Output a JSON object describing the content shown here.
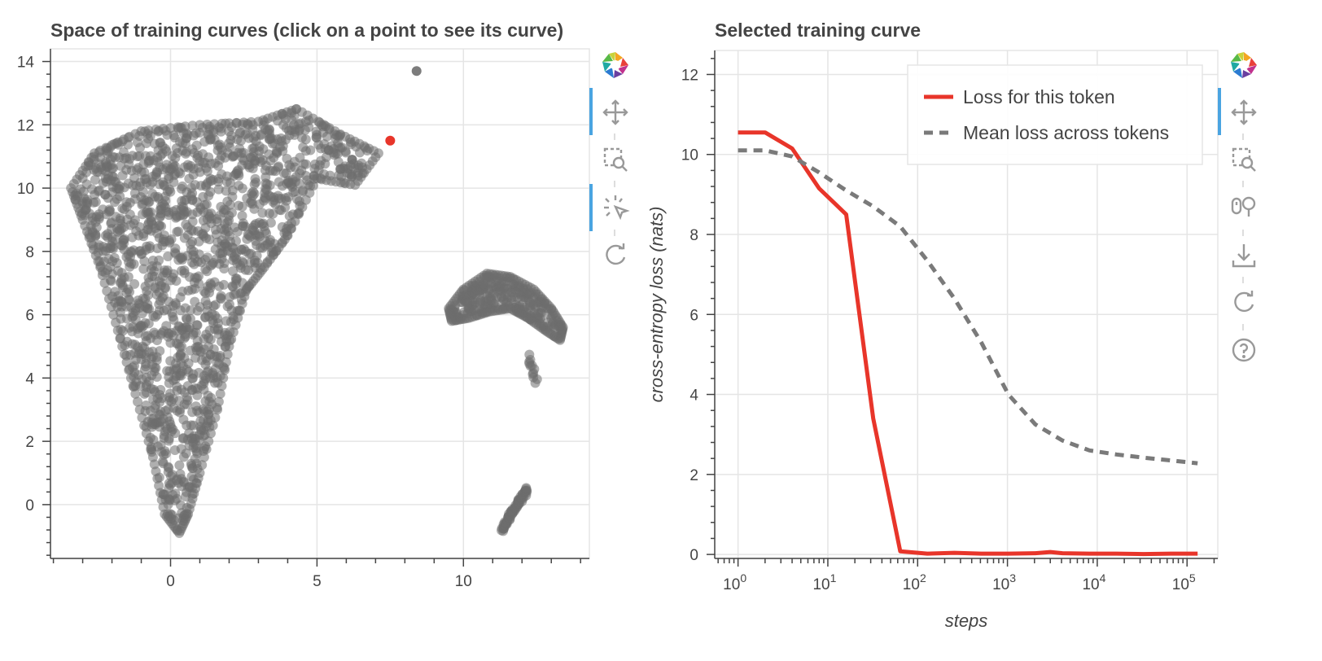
{
  "scatter_panel": {
    "title": "Space of training curves (click on a point to see its curve)",
    "toolbar": [
      "bokeh-logo-icon",
      "pan-icon",
      "box-zoom-icon",
      "tap-select-icon",
      "reset-icon"
    ]
  },
  "curve_panel": {
    "title": "Selected training curve",
    "toolbar": [
      "bokeh-logo-icon",
      "pan-icon",
      "box-zoom-icon",
      "wheel-zoom-icon",
      "save-icon",
      "reset-icon",
      "help-icon"
    ]
  },
  "colors": {
    "points": "#6e6e6e",
    "selected": "#e8352a",
    "token_line": "#e8352a",
    "mean_line": "#7a7a7a",
    "grid": "#e5e5e5",
    "axis": "#444444",
    "active_tool": "#4aa4e1"
  },
  "chart_data": [
    {
      "type": "scatter",
      "title": "Space of training curves (click on a point to see its curve)",
      "xlabel": "",
      "ylabel": "",
      "xlim": [
        -4.1,
        14.3
      ],
      "ylim": [
        -1.7,
        14.4
      ],
      "x_ticks": [
        0,
        5,
        10
      ],
      "y_ticks": [
        0,
        2,
        4,
        6,
        8,
        10,
        12,
        14
      ],
      "grid": true,
      "clusters": [
        {
          "shape": "triangle",
          "outline": [
            [
              -3.4,
              10.0
            ],
            [
              -2.6,
              11.1
            ],
            [
              -1.0,
              11.8
            ],
            [
              1.0,
              12.0
            ],
            [
              3.0,
              12.1
            ],
            [
              4.3,
              12.5
            ],
            [
              5.8,
              11.7
            ],
            [
              7.1,
              11.1
            ],
            [
              6.3,
              10.1
            ],
            [
              5.0,
              10.3
            ],
            [
              4.0,
              8.5
            ],
            [
              3.2,
              7.5
            ],
            [
              2.6,
              6.8
            ],
            [
              2.0,
              5.0
            ],
            [
              1.6,
              3.0
            ],
            [
              1.0,
              1.0
            ],
            [
              0.6,
              -0.3
            ],
            [
              0.3,
              -0.9
            ],
            [
              -0.2,
              -0.3
            ],
            [
              -0.6,
              1.5
            ],
            [
              -1.2,
              3.5
            ],
            [
              -1.8,
              5.5
            ],
            [
              -2.4,
              7.5
            ],
            [
              -3.0,
              9.0
            ]
          ],
          "count": 1500
        },
        {
          "shape": "crescent",
          "outline": [
            [
              9.5,
              6.2
            ],
            [
              10.0,
              6.8
            ],
            [
              10.8,
              7.3
            ],
            [
              11.6,
              7.2
            ],
            [
              12.4,
              6.8
            ],
            [
              13.0,
              6.2
            ],
            [
              13.4,
              5.6
            ],
            [
              13.3,
              5.2
            ],
            [
              12.8,
              5.5
            ],
            [
              12.2,
              5.9
            ],
            [
              11.6,
              6.2
            ],
            [
              10.9,
              6.1
            ],
            [
              10.2,
              5.9
            ],
            [
              9.6,
              5.8
            ]
          ],
          "count": 260
        },
        {
          "shape": "tail",
          "from": [
            12.2,
            4.7
          ],
          "to": [
            12.5,
            3.9
          ],
          "count": 12
        },
        {
          "shape": "line",
          "from": [
            11.3,
            -0.8
          ],
          "to": [
            12.2,
            0.5
          ],
          "count": 70
        }
      ],
      "points": [
        {
          "x": 8.4,
          "y": 13.7
        },
        {
          "x": 5.4,
          "y": 11.2
        },
        {
          "x": 6.2,
          "y": 10.9
        },
        {
          "x": 5.8,
          "y": 10.6
        }
      ],
      "selected_point": {
        "x": 7.5,
        "y": 11.5
      }
    },
    {
      "type": "line",
      "title": "Selected training curve",
      "xlabel": "steps",
      "ylabel": "cross-entropy loss (nats)",
      "x_scale": "log",
      "xlim": [
        0.55,
        220000
      ],
      "ylim": [
        -0.1,
        12.6
      ],
      "x_ticks": [
        1,
        10,
        100,
        1000,
        10000,
        100000
      ],
      "x_tick_labels": [
        {
          "base": "10",
          "exp": "0"
        },
        {
          "base": "10",
          "exp": "1"
        },
        {
          "base": "10",
          "exp": "2"
        },
        {
          "base": "10",
          "exp": "3"
        },
        {
          "base": "10",
          "exp": "4"
        },
        {
          "base": "10",
          "exp": "5"
        }
      ],
      "y_ticks": [
        0,
        2,
        4,
        6,
        8,
        10,
        12
      ],
      "grid": true,
      "legend_position": "top-right",
      "series": [
        {
          "name": "Loss for this token",
          "style": "solid",
          "x": [
            1,
            2,
            4,
            8,
            16,
            32,
            64,
            128,
            256,
            512,
            1024,
            2048,
            3000,
            4096,
            8192,
            16384,
            32768,
            65536,
            131072
          ],
          "y": [
            10.55,
            10.55,
            10.15,
            9.15,
            8.5,
            3.4,
            0.08,
            0.02,
            0.04,
            0.02,
            0.02,
            0.03,
            0.06,
            0.03,
            0.02,
            0.02,
            0.01,
            0.02,
            0.02
          ]
        },
        {
          "name": "Mean loss across tokens",
          "style": "dashed",
          "x": [
            1,
            2,
            4,
            8,
            16,
            32,
            64,
            128,
            256,
            512,
            1024,
            2048,
            4096,
            8192,
            16384,
            32768,
            65536,
            131072
          ],
          "y": [
            10.1,
            10.1,
            9.95,
            9.55,
            9.1,
            8.7,
            8.2,
            7.35,
            6.4,
            5.3,
            4.0,
            3.25,
            2.85,
            2.6,
            2.5,
            2.42,
            2.35,
            2.28
          ]
        }
      ]
    }
  ]
}
